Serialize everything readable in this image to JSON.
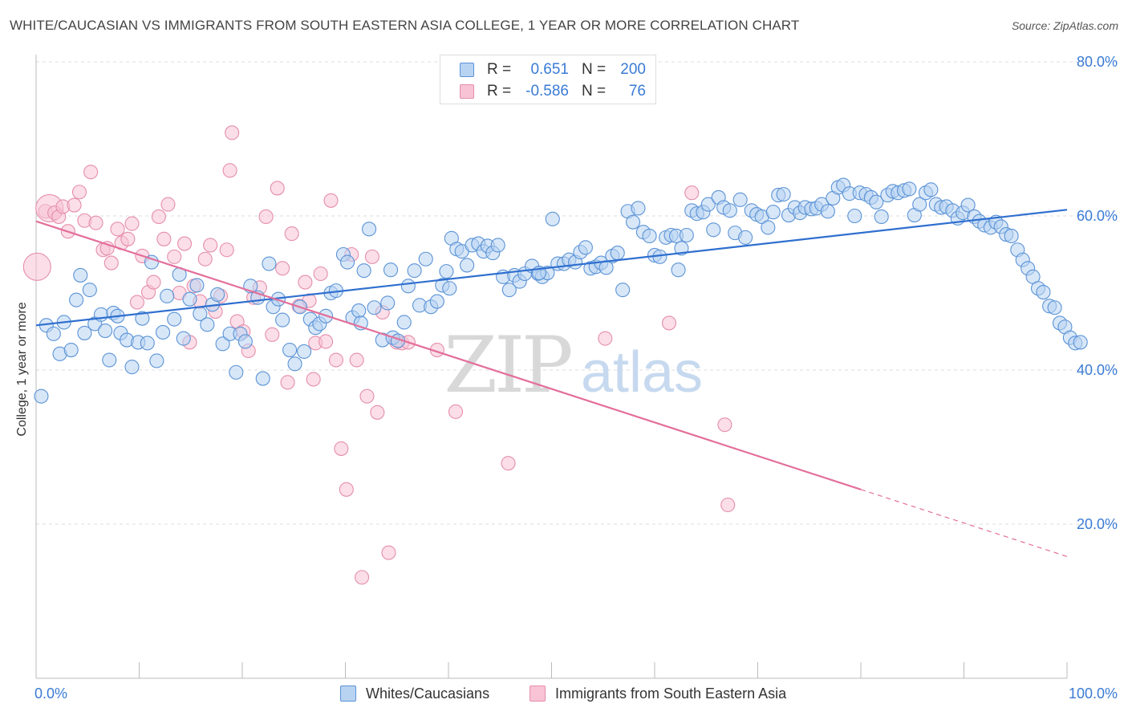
{
  "title": "WHITE/CAUCASIAN VS IMMIGRANTS FROM SOUTH EASTERN ASIA COLLEGE, 1 YEAR OR MORE CORRELATION CHART",
  "source": "Source: ZipAtlas.com",
  "watermark": {
    "zip": "ZIP",
    "atlas": "atlas"
  },
  "colors": {
    "blue_fill": "#b8d3f2",
    "blue_stroke": "#5b93d6",
    "blue_line": "#2f6fcf",
    "pink_fill": "#f8c3d5",
    "pink_stroke": "#e58eab",
    "pink_line": "#e36f9a",
    "value_text": "#3a7bd5",
    "grid": "#dddddd"
  },
  "stats": [
    {
      "label": "R =",
      "r": "0.651",
      "n_label": "N =",
      "n": "200",
      "series": "blue"
    },
    {
      "label": "R =",
      "r": "-0.586",
      "n_label": "N =",
      "n": "76",
      "series": "pink"
    }
  ],
  "legend": [
    {
      "name": "Whites/Caucasians",
      "series": "blue"
    },
    {
      "name": "Immigrants from South Eastern Asia",
      "series": "pink"
    }
  ],
  "chart_data": {
    "type": "scatter",
    "title": "WHITE/CAUCASIAN VS IMMIGRANTS FROM SOUTH EASTERN ASIA COLLEGE, 1 YEAR OR MORE CORRELATION CHART",
    "xlabel": "",
    "ylabel": "College, 1 year or more",
    "xlim": [
      0,
      100
    ],
    "ylim": [
      0,
      85
    ],
    "x_tick_labels": [
      {
        "value": 0,
        "label": "0.0%"
      },
      {
        "value": 100,
        "label": "100.0%"
      }
    ],
    "y_tick_labels": [
      {
        "value": 20,
        "label": "20.0%"
      },
      {
        "value": 40,
        "label": "40.0%"
      },
      {
        "value": 60,
        "label": "60.0%"
      },
      {
        "value": 80,
        "label": "80.0%"
      }
    ],
    "grid": "horizontal dashed",
    "legend_position": "bottom",
    "series": [
      {
        "name": "Whites/Caucasians",
        "color": "#b8d3f2",
        "trend": {
          "x": [
            0,
            100
          ],
          "y": [
            45.8,
            60.8
          ]
        },
        "points": [
          [
            0.5,
            36.6
          ],
          [
            1.0,
            45.8
          ],
          [
            1.7,
            44.7
          ],
          [
            2.3,
            42.1
          ],
          [
            2.7,
            46.2
          ],
          [
            3.4,
            42.6
          ],
          [
            3.9,
            49.1
          ],
          [
            4.3,
            52.3
          ],
          [
            4.7,
            44.8
          ],
          [
            5.2,
            50.4
          ],
          [
            5.7,
            46.0
          ],
          [
            6.3,
            47.2
          ],
          [
            6.7,
            45.1
          ],
          [
            7.1,
            41.3
          ],
          [
            7.5,
            47.4
          ],
          [
            7.9,
            47.0
          ],
          [
            8.2,
            44.8
          ],
          [
            8.8,
            43.9
          ],
          [
            9.3,
            40.4
          ],
          [
            9.9,
            43.6
          ],
          [
            10.3,
            46.7
          ],
          [
            10.8,
            43.5
          ],
          [
            11.2,
            54.0
          ],
          [
            11.7,
            41.2
          ],
          [
            12.3,
            44.9
          ],
          [
            12.7,
            49.6
          ],
          [
            13.4,
            46.6
          ],
          [
            13.9,
            52.4
          ],
          [
            14.3,
            44.1
          ],
          [
            14.9,
            49.2
          ],
          [
            15.6,
            51.0
          ],
          [
            15.9,
            47.3
          ],
          [
            16.6,
            45.9
          ],
          [
            17.1,
            48.5
          ],
          [
            17.6,
            49.8
          ],
          [
            18.1,
            43.4
          ],
          [
            18.8,
            44.7
          ],
          [
            19.4,
            39.7
          ],
          [
            19.8,
            44.7
          ],
          [
            20.3,
            43.7
          ],
          [
            20.8,
            50.9
          ],
          [
            21.5,
            49.4
          ],
          [
            22.0,
            38.9
          ],
          [
            22.6,
            53.8
          ],
          [
            23.0,
            48.2
          ],
          [
            23.5,
            49.2
          ],
          [
            23.9,
            46.5
          ],
          [
            24.6,
            42.6
          ],
          [
            25.1,
            40.8
          ],
          [
            25.6,
            48.2
          ],
          [
            26.0,
            42.4
          ],
          [
            26.6,
            46.6
          ],
          [
            27.1,
            45.5
          ],
          [
            27.5,
            46.0
          ],
          [
            28.1,
            47.0
          ],
          [
            28.6,
            50.0
          ],
          [
            29.1,
            50.3
          ],
          [
            29.8,
            55.0
          ],
          [
            30.2,
            54.0
          ],
          [
            30.7,
            46.8
          ],
          [
            31.3,
            47.7
          ],
          [
            31.8,
            52.9
          ],
          [
            32.3,
            58.3
          ],
          [
            32.8,
            48.1
          ],
          [
            33.6,
            43.9
          ],
          [
            34.1,
            48.7
          ],
          [
            34.6,
            44.2
          ],
          [
            35.1,
            43.8
          ],
          [
            35.7,
            46.2
          ],
          [
            36.1,
            50.9
          ],
          [
            36.7,
            52.9
          ],
          [
            37.2,
            48.4
          ],
          [
            37.8,
            54.4
          ],
          [
            38.3,
            48.2
          ],
          [
            38.9,
            48.9
          ],
          [
            39.4,
            51.0
          ],
          [
            39.8,
            52.8
          ],
          [
            40.3,
            57.1
          ],
          [
            40.8,
            55.7
          ],
          [
            41.3,
            55.4
          ],
          [
            41.8,
            53.6
          ],
          [
            42.3,
            56.2
          ],
          [
            42.9,
            56.4
          ],
          [
            43.4,
            55.4
          ],
          [
            43.8,
            56.1
          ],
          [
            44.3,
            55.2
          ],
          [
            44.8,
            56.2
          ],
          [
            45.3,
            52.1
          ],
          [
            45.9,
            50.4
          ],
          [
            46.4,
            52.3
          ],
          [
            46.9,
            51.5
          ],
          [
            47.4,
            52.5
          ],
          [
            48.1,
            53.5
          ],
          [
            48.7,
            52.5
          ],
          [
            49.1,
            52.1
          ],
          [
            49.6,
            52.6
          ],
          [
            50.1,
            59.6
          ],
          [
            50.6,
            53.8
          ],
          [
            51.2,
            53.8
          ],
          [
            51.7,
            54.3
          ],
          [
            52.3,
            54.0
          ],
          [
            52.8,
            55.3
          ],
          [
            53.3,
            55.9
          ],
          [
            53.8,
            53.2
          ],
          [
            54.3,
            53.4
          ],
          [
            54.8,
            53.9
          ],
          [
            55.3,
            53.3
          ],
          [
            55.9,
            54.8
          ],
          [
            56.4,
            55.2
          ],
          [
            56.9,
            50.4
          ],
          [
            57.4,
            60.6
          ],
          [
            57.9,
            59.2
          ],
          [
            58.4,
            61.0
          ],
          [
            58.9,
            57.9
          ],
          [
            59.5,
            57.4
          ],
          [
            60.0,
            54.9
          ],
          [
            60.5,
            54.7
          ],
          [
            61.1,
            57.2
          ],
          [
            61.6,
            57.5
          ],
          [
            62.1,
            57.4
          ],
          [
            62.6,
            55.8
          ],
          [
            63.1,
            57.5
          ],
          [
            63.6,
            60.7
          ],
          [
            64.1,
            60.3
          ],
          [
            64.7,
            60.5
          ],
          [
            65.2,
            61.5
          ],
          [
            65.7,
            58.2
          ],
          [
            66.2,
            62.4
          ],
          [
            66.7,
            61.1
          ],
          [
            67.3,
            60.7
          ],
          [
            67.8,
            57.8
          ],
          [
            68.3,
            62.1
          ],
          [
            68.8,
            57.2
          ],
          [
            69.4,
            60.7
          ],
          [
            69.9,
            60.2
          ],
          [
            70.4,
            59.9
          ],
          [
            71.0,
            58.5
          ],
          [
            71.5,
            60.5
          ],
          [
            72.0,
            62.7
          ],
          [
            72.5,
            62.8
          ],
          [
            73.0,
            60.1
          ],
          [
            73.6,
            61.1
          ],
          [
            74.1,
            60.4
          ],
          [
            74.6,
            61.1
          ],
          [
            75.2,
            60.9
          ],
          [
            75.7,
            61.0
          ],
          [
            76.2,
            61.5
          ],
          [
            76.8,
            60.6
          ],
          [
            77.3,
            62.3
          ],
          [
            77.8,
            63.7
          ],
          [
            78.3,
            64.0
          ],
          [
            78.9,
            62.9
          ],
          [
            79.4,
            60.0
          ],
          [
            79.9,
            63.0
          ],
          [
            80.5,
            62.8
          ],
          [
            81.0,
            62.4
          ],
          [
            81.5,
            61.8
          ],
          [
            82.0,
            59.9
          ],
          [
            82.6,
            62.7
          ],
          [
            83.1,
            63.2
          ],
          [
            83.6,
            63.0
          ],
          [
            84.2,
            63.3
          ],
          [
            84.7,
            63.5
          ],
          [
            85.2,
            60.1
          ],
          [
            85.7,
            61.5
          ],
          [
            86.3,
            63.0
          ],
          [
            86.8,
            63.4
          ],
          [
            87.3,
            61.5
          ],
          [
            87.8,
            61.1
          ],
          [
            88.3,
            61.2
          ],
          [
            88.9,
            60.7
          ],
          [
            89.4,
            59.7
          ],
          [
            89.9,
            60.4
          ],
          [
            90.4,
            61.4
          ],
          [
            91.0,
            59.9
          ],
          [
            91.5,
            59.3
          ],
          [
            92.0,
            58.8
          ],
          [
            92.6,
            58.5
          ],
          [
            93.1,
            59.2
          ],
          [
            93.6,
            58.6
          ],
          [
            94.1,
            57.6
          ],
          [
            94.6,
            57.4
          ],
          [
            95.2,
            55.6
          ],
          [
            95.7,
            54.3
          ],
          [
            96.2,
            53.2
          ],
          [
            96.7,
            52.1
          ],
          [
            97.2,
            50.6
          ],
          [
            97.7,
            50.1
          ],
          [
            98.3,
            48.3
          ],
          [
            98.8,
            48.1
          ],
          [
            99.3,
            46.1
          ],
          [
            99.8,
            45.6
          ],
          [
            100.3,
            44.2
          ],
          [
            100.8,
            43.5
          ],
          [
            101.3,
            43.6
          ],
          [
            62.3,
            53.0
          ],
          [
            48.8,
            52.6
          ],
          [
            34.4,
            53.0
          ],
          [
            31.5,
            46.1
          ],
          [
            40.1,
            50.6
          ]
        ]
      },
      {
        "name": "Immigrants from South Eastern Asia",
        "color": "#f8c3d5",
        "trend": {
          "x": [
            0,
            80
          ],
          "y": [
            59.3,
            24.5
          ]
        },
        "trend_dashed": {
          "x": [
            80,
            100
          ],
          "y": [
            24.5,
            15.8
          ]
        },
        "points": [
          [
            0.1,
            53.4
          ],
          [
            0.9,
            60.6
          ],
          [
            1.3,
            61.0
          ],
          [
            1.8,
            60.4
          ],
          [
            2.2,
            59.9
          ],
          [
            2.6,
            61.2
          ],
          [
            3.1,
            58.0
          ],
          [
            3.7,
            61.4
          ],
          [
            4.2,
            63.1
          ],
          [
            4.7,
            59.4
          ],
          [
            5.3,
            65.7
          ],
          [
            5.8,
            59.1
          ],
          [
            6.5,
            55.6
          ],
          [
            6.9,
            55.8
          ],
          [
            7.3,
            53.9
          ],
          [
            7.9,
            58.3
          ],
          [
            8.3,
            56.5
          ],
          [
            8.9,
            57.0
          ],
          [
            9.3,
            59.0
          ],
          [
            9.8,
            48.8
          ],
          [
            10.3,
            54.8
          ],
          [
            10.9,
            50.1
          ],
          [
            11.4,
            51.4
          ],
          [
            11.9,
            59.9
          ],
          [
            12.4,
            57.0
          ],
          [
            12.8,
            61.5
          ],
          [
            13.4,
            54.7
          ],
          [
            13.9,
            50.0
          ],
          [
            14.4,
            56.4
          ],
          [
            14.9,
            43.6
          ],
          [
            15.3,
            50.9
          ],
          [
            15.9,
            48.9
          ],
          [
            16.4,
            54.4
          ],
          [
            16.9,
            56.2
          ],
          [
            17.4,
            47.6
          ],
          [
            17.9,
            49.6
          ],
          [
            18.5,
            55.6
          ],
          [
            19.0,
            70.8
          ],
          [
            18.8,
            65.9
          ],
          [
            19.5,
            46.3
          ],
          [
            20.1,
            45.0
          ],
          [
            20.6,
            42.5
          ],
          [
            21.1,
            49.4
          ],
          [
            21.7,
            50.7
          ],
          [
            22.3,
            59.9
          ],
          [
            22.9,
            44.6
          ],
          [
            23.4,
            63.6
          ],
          [
            23.9,
            53.2
          ],
          [
            24.4,
            38.4
          ],
          [
            24.8,
            57.7
          ],
          [
            25.5,
            48.3
          ],
          [
            26.1,
            51.4
          ],
          [
            26.5,
            49.0
          ],
          [
            27.1,
            43.5
          ],
          [
            27.6,
            52.5
          ],
          [
            28.1,
            43.7
          ],
          [
            28.6,
            62.0
          ],
          [
            29.1,
            41.3
          ],
          [
            29.6,
            29.8
          ],
          [
            30.1,
            24.5
          ],
          [
            30.6,
            55.0
          ],
          [
            31.1,
            41.3
          ],
          [
            31.6,
            13.1
          ],
          [
            32.1,
            36.6
          ],
          [
            32.6,
            54.7
          ],
          [
            33.1,
            34.5
          ],
          [
            33.6,
            47.5
          ],
          [
            34.2,
            16.3
          ],
          [
            35.0,
            43.6
          ],
          [
            35.5,
            43.5
          ],
          [
            36.1,
            43.6
          ],
          [
            38.9,
            42.6
          ],
          [
            40.7,
            34.6
          ],
          [
            45.8,
            27.9
          ],
          [
            55.2,
            44.1
          ],
          [
            61.4,
            46.1
          ],
          [
            63.6,
            63.0
          ],
          [
            66.8,
            32.9
          ],
          [
            67.1,
            22.5
          ],
          [
            26.9,
            38.8
          ]
        ],
        "large_points": [
          [
            0.1,
            53.4
          ],
          [
            1.3,
            61.0
          ]
        ]
      }
    ]
  }
}
